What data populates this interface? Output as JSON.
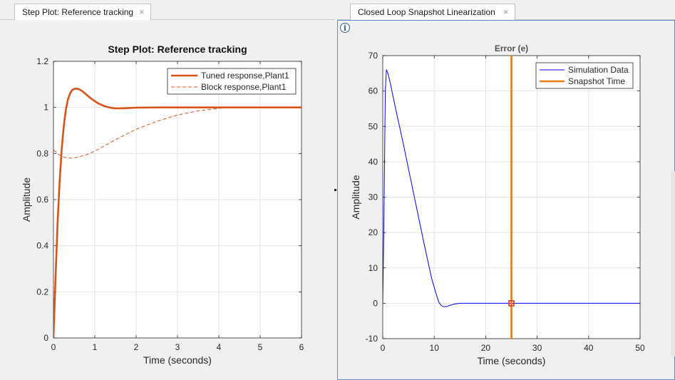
{
  "left_panel": {
    "tab_title": "Step Plot: Reference tracking",
    "tab_close_glyph": "×"
  },
  "right_panel": {
    "tab_title": "Closed Loop Snapshot Linearization",
    "tab_close_glyph": "×",
    "info_glyph": "i"
  },
  "chart_data": [
    {
      "type": "line",
      "title": "Step Plot: Reference tracking",
      "xlabel": "Time (seconds)",
      "ylabel": "Amplitude",
      "xlim": [
        0,
        6
      ],
      "ylim": [
        0,
        1.2
      ],
      "x_ticks": [
        0,
        1,
        2,
        3,
        4,
        5,
        6
      ],
      "y_ticks": [
        0,
        0.2,
        0.4,
        0.6,
        0.8,
        1,
        1.2
      ],
      "grid": true,
      "legend_position": "top-right",
      "series": [
        {
          "name": "Tuned response,Plant1",
          "color": "#d95319",
          "style": "solid",
          "x": [
            0,
            0.05,
            0.1,
            0.15,
            0.2,
            0.25,
            0.3,
            0.35,
            0.4,
            0.45,
            0.5,
            0.55,
            0.6,
            0.65,
            0.7,
            0.8,
            0.9,
            1.0,
            1.1,
            1.2,
            1.3,
            1.4,
            1.5,
            1.6,
            1.8,
            2.0,
            2.5,
            3,
            4,
            5,
            6
          ],
          "y": [
            0,
            0.26,
            0.5,
            0.68,
            0.82,
            0.92,
            0.99,
            1.035,
            1.06,
            1.075,
            1.08,
            1.082,
            1.08,
            1.076,
            1.07,
            1.055,
            1.04,
            1.027,
            1.016,
            1.008,
            1.002,
            0.998,
            0.996,
            0.996,
            0.997,
            0.999,
            1.0,
            1.0,
            1.0,
            1.0,
            1.0
          ]
        },
        {
          "name": "Block response,Plant1",
          "color": "#d95319",
          "style": "dashed",
          "x": [
            0,
            0.001,
            0.1,
            0.2,
            0.3,
            0.4,
            0.5,
            0.6,
            0.8,
            1.0,
            1.2,
            1.5,
            2.0,
            2.5,
            3.0,
            3.5,
            4.0,
            4.2,
            4.5,
            5,
            6
          ],
          "y": [
            0,
            0.815,
            0.8,
            0.788,
            0.782,
            0.78,
            0.781,
            0.785,
            0.795,
            0.81,
            0.83,
            0.86,
            0.905,
            0.94,
            0.967,
            0.985,
            0.996,
            0.999,
            1.0,
            1.0,
            1.0
          ]
        }
      ]
    },
    {
      "type": "line",
      "title": "Error (e)",
      "xlabel": "Time (seconds)",
      "ylabel": "Amplitude",
      "xlim": [
        0,
        50
      ],
      "ylim": [
        -10,
        70
      ],
      "x_ticks": [
        0,
        10,
        20,
        30,
        40,
        50
      ],
      "y_ticks": [
        -10,
        0,
        10,
        20,
        30,
        40,
        50,
        60,
        70
      ],
      "grid": true,
      "legend_position": "top-right",
      "series": [
        {
          "name": "Simulation Data",
          "color": "#0000ff",
          "style": "solid",
          "x": [
            0,
            0.2,
            0.5,
            0.7,
            1.0,
            1.5,
            2.5,
            4,
            6,
            8,
            9.5,
            10.5,
            11,
            11.5,
            12,
            12.5,
            13,
            14,
            15,
            16,
            18,
            20,
            25,
            30,
            40,
            50
          ],
          "y": [
            0,
            20,
            60,
            66,
            65,
            62,
            55,
            45,
            31,
            17,
            7,
            2,
            0,
            -0.8,
            -1,
            -0.9,
            -0.6,
            -0.2,
            0,
            0,
            0,
            0,
            0,
            0,
            0,
            0
          ]
        },
        {
          "name": "Snapshot Time",
          "color": "#e87d0d",
          "style": "solid",
          "x": [
            25,
            25
          ],
          "y": [
            -10,
            70
          ]
        }
      ],
      "marker": {
        "x": 25,
        "y": 0,
        "color": "#e03030"
      }
    }
  ]
}
